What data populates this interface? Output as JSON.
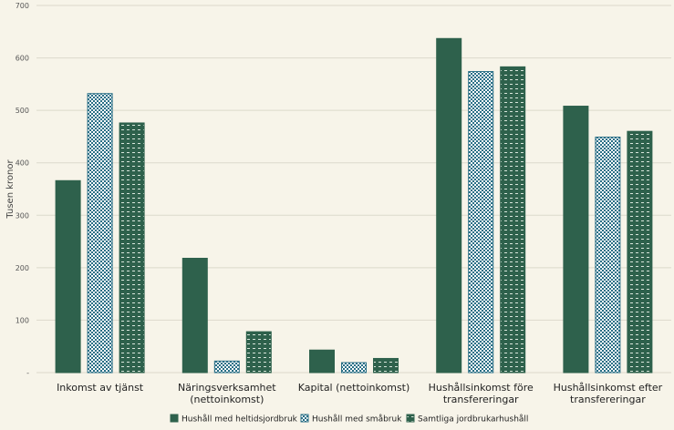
{
  "chart_data": {
    "type": "bar",
    "ylabel": "Tusen kronor",
    "ylim": [
      0,
      700
    ],
    "yticks": [
      {
        "value": 0,
        "label": "-"
      },
      {
        "value": 100,
        "label": "100"
      },
      {
        "value": 200,
        "label": "200"
      },
      {
        "value": 300,
        "label": "300"
      },
      {
        "value": 400,
        "label": "400"
      },
      {
        "value": 500,
        "label": "500"
      },
      {
        "value": 600,
        "label": "600"
      },
      {
        "value": 700,
        "label": "700"
      }
    ],
    "grid": true,
    "legend_position": "bottom",
    "categories": [
      [
        "Inkomst av tjänst"
      ],
      [
        "Näringsverksamhet",
        "(nettoinkomst)"
      ],
      [
        "Kapital (nettoinkomst)"
      ],
      [
        "Hushållsinkomst före",
        "transfereringar"
      ],
      [
        "Hushållsinkomst efter",
        "transfereringar"
      ]
    ],
    "series": [
      {
        "name": "Hushåll med heltidsjordbruk",
        "pattern": "solid",
        "color": "#2e614c",
        "values": [
          366,
          218,
          43,
          637,
          508
        ]
      },
      {
        "name": "Hushåll med småbruk",
        "pattern": "checker",
        "color": "#2a6f86",
        "values": [
          532,
          22,
          19,
          574,
          449
        ]
      },
      {
        "name": "Samtliga jordbrukarhushåll",
        "pattern": "dash",
        "color": "#2e614c",
        "values": [
          476,
          78,
          27,
          583,
          460
        ]
      }
    ]
  }
}
